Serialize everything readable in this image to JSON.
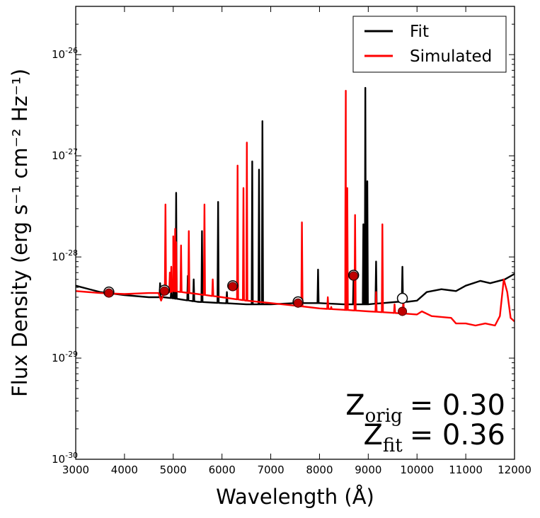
{
  "chart_data": {
    "type": "line",
    "xlabel": "Wavelength (Å)",
    "ylabel": "Flux Density (erg s⁻¹ cm⁻² Hz⁻¹)",
    "xlim": [
      3000,
      12000
    ],
    "ylim": [
      1e-30,
      3e-26
    ],
    "yscale": "log",
    "x_ticks": [
      "3000",
      "4000",
      "5000",
      "6000",
      "7000",
      "8000",
      "9000",
      "10000",
      "11000",
      "12000"
    ],
    "y_ticks": [
      {
        "value": 1e-30,
        "base": "10",
        "exp": "-30"
      },
      {
        "value": 1e-29,
        "base": "10",
        "exp": "-29"
      },
      {
        "value": 1e-28,
        "base": "10",
        "exp": "-28"
      },
      {
        "value": 1e-27,
        "base": "10",
        "exp": "-27"
      },
      {
        "value": 1e-26,
        "base": "10",
        "exp": "-26"
      }
    ],
    "legend_position": "top-right",
    "grid": false,
    "series": [
      {
        "name": "Fit",
        "color": "#000000",
        "continuum": [
          [
            3000,
            5.2e-29
          ],
          [
            3500,
            4.5e-29
          ],
          [
            4000,
            4.2e-29
          ],
          [
            4500,
            4e-29
          ],
          [
            4800,
            4e-29
          ],
          [
            5000,
            3.9e-29
          ],
          [
            5500,
            3.6e-29
          ],
          [
            6000,
            3.5e-29
          ],
          [
            6500,
            3.4e-29
          ],
          [
            7000,
            3.4e-29
          ],
          [
            7500,
            3.5e-29
          ],
          [
            8000,
            3.5e-29
          ],
          [
            8500,
            3.4e-29
          ],
          [
            9000,
            3.4e-29
          ],
          [
            9300,
            3.5e-29
          ],
          [
            9600,
            3.6e-29
          ],
          [
            9800,
            3.6e-29
          ],
          [
            10000,
            3.7e-29
          ],
          [
            10200,
            4.5e-29
          ],
          [
            10500,
            4.8e-29
          ],
          [
            10800,
            4.6e-29
          ],
          [
            11000,
            5.2e-29
          ],
          [
            11300,
            5.8e-29
          ],
          [
            11500,
            5.5e-29
          ],
          [
            11800,
            6e-29
          ],
          [
            12000,
            6.8e-29
          ]
        ],
        "lines": [
          [
            4730,
            5.5e-29
          ],
          [
            4960,
            4.8e-29
          ],
          [
            5007,
            5.5e-29
          ],
          [
            5060,
            4.3e-28
          ],
          [
            5300,
            6.5e-29
          ],
          [
            5420,
            6e-29
          ],
          [
            5590,
            1.8e-28
          ],
          [
            5920,
            3.5e-28
          ],
          [
            6100,
            4.5e-29
          ],
          [
            6620,
            8.8e-28
          ],
          [
            6760,
            7.3e-28
          ],
          [
            6830,
            2.2e-27
          ],
          [
            7970,
            7.5e-29
          ],
          [
            8700,
            7e-29
          ],
          [
            8900,
            2.1e-28
          ],
          [
            8940,
            4.7e-27
          ],
          [
            8980,
            5.6e-28
          ],
          [
            9160,
            9e-29
          ],
          [
            9700,
            8e-29
          ]
        ]
      },
      {
        "name": "Simulated",
        "color": "#ff0000",
        "continuum": [
          [
            3000,
            4.6e-29
          ],
          [
            3500,
            4.4e-29
          ],
          [
            4000,
            4.3e-29
          ],
          [
            4500,
            4.4e-29
          ],
          [
            4700,
            4.4e-29
          ],
          [
            4750,
            3.7e-29
          ],
          [
            4800,
            4.3e-29
          ],
          [
            5000,
            4.6e-29
          ],
          [
            5500,
            4.3e-29
          ],
          [
            6000,
            4e-29
          ],
          [
            6500,
            3.7e-29
          ],
          [
            7000,
            3.5e-29
          ],
          [
            7500,
            3.3e-29
          ],
          [
            8000,
            3.1e-29
          ],
          [
            8500,
            3e-29
          ],
          [
            9000,
            2.9e-29
          ],
          [
            9500,
            2.8e-29
          ],
          [
            10000,
            2.7e-29
          ],
          [
            10100,
            2.9e-29
          ],
          [
            10300,
            2.6e-29
          ],
          [
            10700,
            2.5e-29
          ],
          [
            10800,
            2.2e-29
          ],
          [
            11000,
            2.2e-29
          ],
          [
            11200,
            2.1e-29
          ],
          [
            11400,
            2.2e-29
          ],
          [
            11600,
            2.1e-29
          ],
          [
            11700,
            2.6e-29
          ],
          [
            11780,
            6e-29
          ],
          [
            11850,
            4.5e-29
          ],
          [
            11920,
            2.5e-29
          ],
          [
            12000,
            2.3e-29
          ]
        ],
        "lines": [
          [
            4840,
            3.3e-28
          ],
          [
            4930,
            7e-29
          ],
          [
            4960,
            8e-29
          ],
          [
            5000,
            1.6e-28
          ],
          [
            5040,
            1.9e-28
          ],
          [
            5060,
            1.4e-28
          ],
          [
            5160,
            1.3e-28
          ],
          [
            5320,
            1.8e-28
          ],
          [
            5640,
            3.3e-28
          ],
          [
            5810,
            6e-29
          ],
          [
            6320,
            8e-28
          ],
          [
            6440,
            4.8e-28
          ],
          [
            6510,
            1.35e-27
          ],
          [
            7640,
            2.2e-28
          ],
          [
            8170,
            4e-29
          ],
          [
            8240,
            3.2e-29
          ],
          [
            8530,
            2.6e-28
          ],
          [
            8540,
            4.4e-27
          ],
          [
            8570,
            4.8e-28
          ],
          [
            8730,
            2.6e-28
          ],
          [
            9160,
            4.5e-29
          ],
          [
            9290,
            2.1e-28
          ],
          [
            9540,
            3.4e-29
          ],
          [
            9720,
            3.9e-29
          ]
        ]
      }
    ],
    "photometry_fit": [
      [
        3680,
        4.5e-29
      ],
      [
        4820,
        4.7e-29
      ],
      [
        6220,
        5.2e-29
      ],
      [
        7560,
        3.6e-29
      ],
      [
        8700,
        6.6e-29
      ],
      [
        9700,
        3.9e-29
      ]
    ],
    "photometry_sim": [
      [
        3680,
        4.4e-29
      ],
      [
        4820,
        4.6e-29
      ],
      [
        6220,
        5.1e-29
      ],
      [
        7560,
        3.5e-29
      ],
      [
        8700,
        6.5e-29
      ],
      [
        9700,
        2.9e-29
      ]
    ],
    "annotations": [
      {
        "base": "Z",
        "sub": "orig",
        "value": "= 0.30"
      },
      {
        "base": "Z",
        "sub": "fit",
        "value": "= 0.36"
      }
    ]
  }
}
